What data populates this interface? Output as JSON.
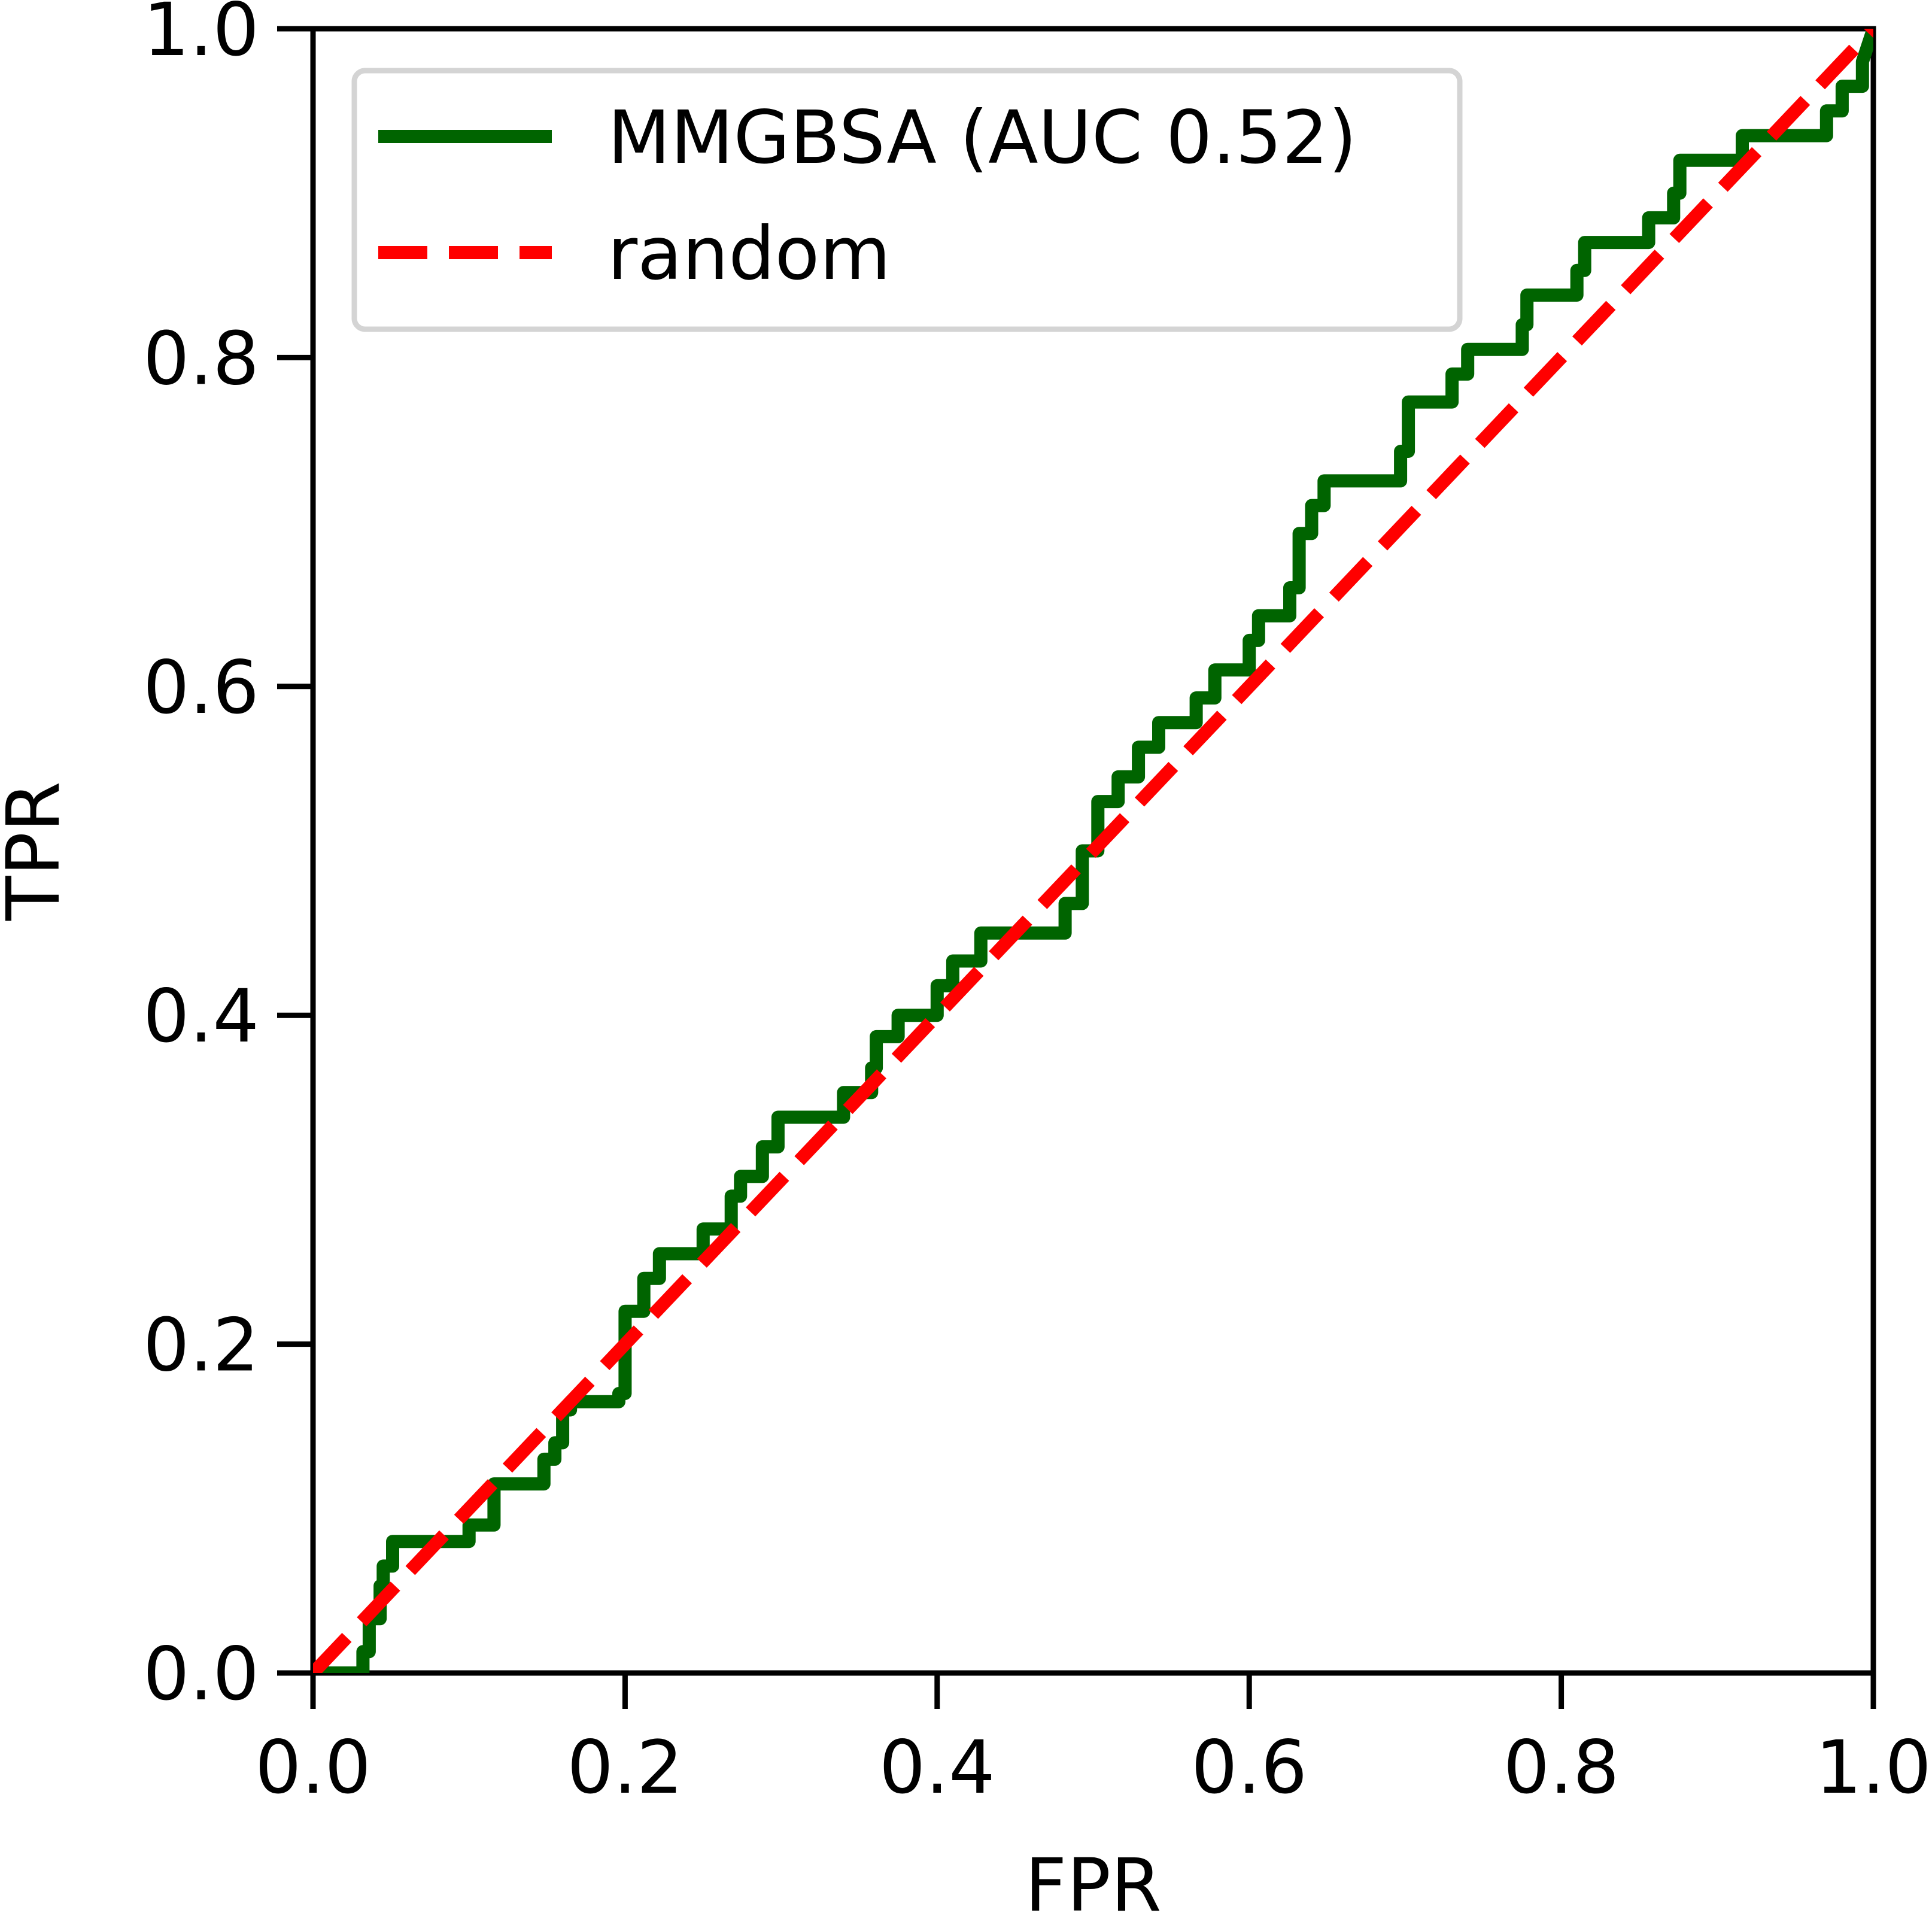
{
  "chart_data": {
    "type": "line",
    "title": "",
    "xlabel": "FPR",
    "ylabel": "TPR",
    "xlim": [
      0.0,
      1.0
    ],
    "ylim": [
      0.0,
      1.0
    ],
    "x_ticks": [
      "0.0",
      "0.2",
      "0.4",
      "0.6",
      "0.8",
      "1.0"
    ],
    "y_ticks": [
      "0.0",
      "0.2",
      "0.4",
      "0.6",
      "0.8",
      "1.0"
    ],
    "grid": false,
    "legend_position": "top-left",
    "series": [
      {
        "name": "MMGBSA (AUC 0.52)",
        "color": "#006400",
        "style": "solid",
        "x": [
          0.0,
          0.032,
          0.032,
          0.036,
          0.036,
          0.043,
          0.043,
          0.045,
          0.045,
          0.051,
          0.051,
          0.1,
          0.1,
          0.116,
          0.116,
          0.148,
          0.148,
          0.155,
          0.155,
          0.16,
          0.16,
          0.165,
          0.165,
          0.196,
          0.196,
          0.2,
          0.2,
          0.212,
          0.212,
          0.222,
          0.222,
          0.25,
          0.25,
          0.268,
          0.268,
          0.274,
          0.274,
          0.288,
          0.288,
          0.298,
          0.298,
          0.34,
          0.34,
          0.358,
          0.358,
          0.361,
          0.361,
          0.375,
          0.375,
          0.4,
          0.4,
          0.41,
          0.41,
          0.428,
          0.428,
          0.482,
          0.482,
          0.493,
          0.493,
          0.503,
          0.503,
          0.516,
          0.516,
          0.529,
          0.529,
          0.542,
          0.542,
          0.566,
          0.566,
          0.578,
          0.578,
          0.6,
          0.6,
          0.606,
          0.606,
          0.626,
          0.626,
          0.632,
          0.632,
          0.64,
          0.64,
          0.648,
          0.648,
          0.697,
          0.697,
          0.702,
          0.702,
          0.73,
          0.73,
          0.74,
          0.74,
          0.775,
          0.775,
          0.778,
          0.778,
          0.81,
          0.81,
          0.815,
          0.815,
          0.856,
          0.856,
          0.872,
          0.872,
          0.876,
          0.876,
          0.916,
          0.916,
          0.97,
          0.97,
          0.98,
          0.98,
          0.993,
          0.993,
          1.0
        ],
        "values": [
          0.0,
          0.0,
          0.013,
          0.013,
          0.033,
          0.033,
          0.053,
          0.053,
          0.065,
          0.065,
          0.08,
          0.08,
          0.09,
          0.09,
          0.115,
          0.115,
          0.13,
          0.13,
          0.14,
          0.14,
          0.16,
          0.16,
          0.165,
          0.165,
          0.17,
          0.17,
          0.22,
          0.22,
          0.24,
          0.24,
          0.255,
          0.255,
          0.27,
          0.27,
          0.29,
          0.29,
          0.302,
          0.302,
          0.32,
          0.32,
          0.338,
          0.338,
          0.353,
          0.353,
          0.368,
          0.368,
          0.387,
          0.387,
          0.4,
          0.4,
          0.418,
          0.418,
          0.433,
          0.433,
          0.45,
          0.45,
          0.468,
          0.468,
          0.5,
          0.5,
          0.53,
          0.53,
          0.545,
          0.545,
          0.563,
          0.563,
          0.578,
          0.578,
          0.593,
          0.593,
          0.61,
          0.61,
          0.628,
          0.628,
          0.643,
          0.643,
          0.66,
          0.66,
          0.693,
          0.693,
          0.71,
          0.71,
          0.725,
          0.725,
          0.743,
          0.743,
          0.773,
          0.773,
          0.79,
          0.79,
          0.805,
          0.805,
          0.82,
          0.82,
          0.838,
          0.838,
          0.853,
          0.853,
          0.87,
          0.87,
          0.885,
          0.885,
          0.9,
          0.9,
          0.92,
          0.92,
          0.935,
          0.935,
          0.95,
          0.95,
          0.965,
          0.965,
          0.98,
          1.0
        ]
      },
      {
        "name": "random",
        "color": "#ff0000",
        "style": "dashed",
        "x": [
          0.0,
          1.0
        ],
        "values": [
          0.0,
          1.0
        ]
      }
    ]
  }
}
